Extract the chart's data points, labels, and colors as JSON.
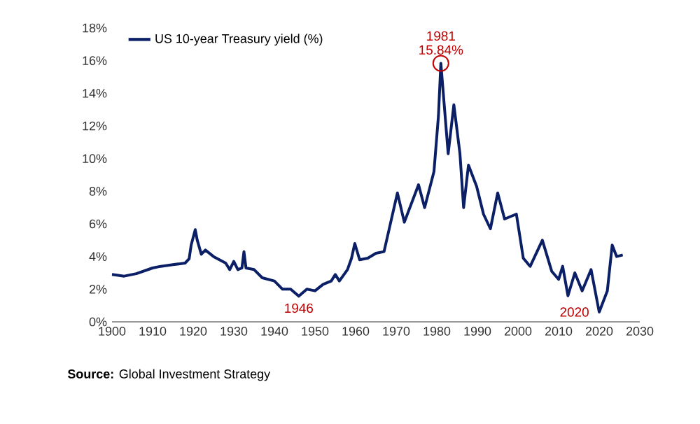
{
  "chart_data": {
    "type": "line",
    "x": [
      1900,
      1903,
      1906,
      1910,
      1912,
      1915,
      1918,
      1919,
      1919.5,
      1920.5,
      1921,
      1922,
      1923,
      1925,
      1928,
      1929,
      1930,
      1931,
      1932,
      1932.5,
      1933,
      1935,
      1937,
      1940,
      1942,
      1944,
      1946,
      1948,
      1950,
      1952,
      1954,
      1955,
      1956,
      1958,
      1959,
      1959.8,
      1961,
      1963,
      1965,
      1967,
      1970.3,
      1972,
      1975.5,
      1977,
      1979.3,
      1980.4,
      1981,
      1982.8,
      1984.2,
      1985.7,
      1986.6,
      1987.8,
      1989.8,
      1991.5,
      1993.2,
      1995,
      1996.7,
      1999.6,
      2001.3,
      2003,
      2006,
      2008.3,
      2010,
      2011,
      2012.3,
      2014,
      2015.8,
      2018,
      2020,
      2022,
      2023.2,
      2024.3,
      2025.8
    ],
    "series": [
      {
        "name": "US 10-year Treasury yield (%)",
        "color": "#0b1f66",
        "values": [
          2.9,
          2.8,
          2.95,
          3.3,
          3.4,
          3.5,
          3.6,
          3.86,
          4.7,
          5.65,
          5.0,
          4.14,
          4.4,
          4.0,
          3.6,
          3.2,
          3.7,
          3.2,
          3.3,
          4.3,
          3.3,
          3.2,
          2.7,
          2.5,
          2.0,
          2.0,
          1.57,
          2.0,
          1.9,
          2.3,
          2.5,
          2.9,
          2.5,
          3.2,
          3.9,
          4.8,
          3.8,
          3.9,
          4.2,
          4.3,
          7.9,
          6.1,
          8.4,
          7.0,
          9.2,
          12.6,
          15.84,
          10.3,
          13.3,
          10.3,
          7.0,
          9.6,
          8.3,
          6.6,
          5.7,
          7.9,
          6.3,
          6.6,
          3.9,
          3.4,
          5.0,
          3.1,
          2.6,
          3.4,
          1.6,
          3.0,
          1.9,
          3.2,
          0.6,
          1.9,
          4.7,
          4.0,
          4.1
        ]
      }
    ],
    "xlim": [
      1900,
      2030
    ],
    "xticks": [
      1900,
      1910,
      1920,
      1930,
      1940,
      1950,
      1960,
      1970,
      1980,
      1990,
      2000,
      2010,
      2020,
      2030
    ],
    "ylim": [
      0,
      18
    ],
    "yticks": [
      {
        "value": 0,
        "label": "0%"
      },
      {
        "value": 2,
        "label": "2%"
      },
      {
        "value": 4,
        "label": "4%"
      },
      {
        "value": 6,
        "label": "6%"
      },
      {
        "value": 8,
        "label": "8%"
      },
      {
        "value": 10,
        "label": "10%"
      },
      {
        "value": 12,
        "label": "12%"
      },
      {
        "value": 14,
        "label": "14%"
      },
      {
        "value": 16,
        "label": "16%"
      },
      {
        "value": 18,
        "label": "18%"
      }
    ],
    "legend": "top left",
    "grid": false,
    "marker": "none",
    "line_style": "solid",
    "annotations": [
      {
        "text": "1981",
        "x": 1981,
        "y": 15.84
      },
      {
        "text": "15.84%",
        "x": 1981,
        "y": 15.84
      },
      {
        "text": "1946",
        "x": 1946,
        "y": 1.57
      },
      {
        "text": "2020",
        "x": 2020,
        "y": 0.6
      },
      "**Source:** Global Investment Strategy"
    ]
  }
}
